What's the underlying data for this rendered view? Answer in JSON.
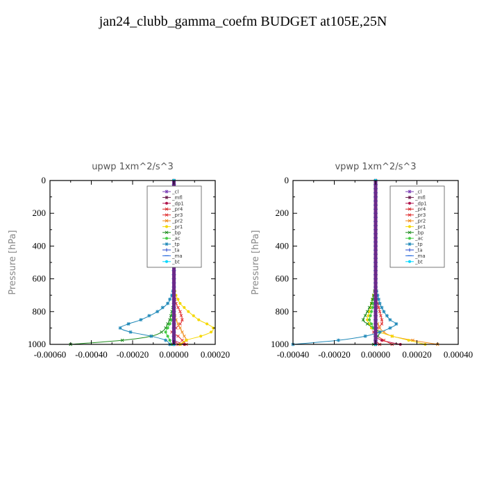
{
  "title": "jan24_clubb_gamma_coefm  BUDGET at105E,25N",
  "chart_data": [
    {
      "type": "line",
      "title": "upwp   1xm^2/s^3",
      "ylabel": "Pressure [hPa]",
      "xlabel": "",
      "xlim": [
        -0.0006,
        0.0002
      ],
      "ylim": [
        1000,
        0
      ],
      "xticks": [
        "-0.00060",
        "-0.00040",
        "-0.00020",
        "0.00000",
        "0.00020"
      ],
      "yticks": [
        "0",
        "200",
        "400",
        "600",
        "800",
        "1000"
      ],
      "legend_position": "top-right",
      "pressure_levels": [
        650,
        700,
        750,
        800,
        850,
        875,
        900,
        925,
        950,
        975,
        1000
      ],
      "series": [
        {
          "name": "_cl",
          "color": "#7b3fb5",
          "values": [
            0,
            0,
            0,
            0,
            0,
            0,
            0,
            0,
            0,
            0,
            0
          ]
        },
        {
          "name": "_mfl",
          "color": "#6a1a4a",
          "values": [
            0,
            0,
            0,
            0,
            0,
            0,
            0,
            0,
            0,
            0,
            0
          ]
        },
        {
          "name": "_dp1",
          "color": "#b0154e",
          "values": [
            0,
            0,
            0,
            0,
            0,
            0,
            0,
            0,
            0,
            0,
            5e-05
          ]
        },
        {
          "name": "_pr4",
          "color": "#d42020",
          "values": [
            0,
            0,
            0,
            0,
            0,
            0,
            0,
            0,
            0,
            0,
            2e-05
          ]
        },
        {
          "name": "_pr3",
          "color": "#e03030",
          "values": [
            0,
            0,
            1e-05,
            3e-05,
            4e-05,
            3e-05,
            1e-05,
            -1e-05,
            2e-05,
            4e-05,
            6e-05
          ]
        },
        {
          "name": "_pr2",
          "color": "#f08a1a",
          "values": [
            0,
            0,
            0,
            0,
            1e-05,
            2e-05,
            3e-05,
            4e-05,
            5e-05,
            6e-05,
            3e-05
          ]
        },
        {
          "name": "_pr1",
          "color": "#f5d800",
          "values": [
            0,
            1e-05,
            3e-05,
            7e-05,
            0.00012,
            0.00016,
            0.00019,
            0.00018,
            0.00013,
            6e-05,
            3e-05
          ]
        },
        {
          "name": "_bp",
          "color": "#1a8a1a",
          "values": [
            0,
            0,
            0,
            -1e-05,
            -2e-05,
            -3e-05,
            -4e-05,
            -6e-05,
            -0.00011,
            -0.00025,
            -0.0005
          ]
        },
        {
          "name": "_ac",
          "color": "#44cc44",
          "values": [
            0,
            0,
            0,
            0,
            -1e-05,
            -2e-05,
            -3e-05,
            -4e-05,
            -3e-05,
            -2e-05,
            -1e-05
          ]
        },
        {
          "name": "_tp",
          "color": "#1e88b8",
          "values": [
            0,
            -1e-05,
            -3e-05,
            -8e-05,
            -0.00016,
            -0.00022,
            -0.00026,
            -0.00021,
            -0.00011,
            -4e-05,
            -2e-05
          ]
        },
        {
          "name": "_ta",
          "color": "#2244cc",
          "values": [
            0,
            0,
            0,
            0,
            0,
            0,
            0,
            0,
            0,
            0,
            0
          ]
        },
        {
          "name": "_ma",
          "color": "#2266dd",
          "values": [
            0,
            0,
            0,
            0,
            0,
            0,
            0,
            0,
            0,
            0,
            0
          ]
        },
        {
          "name": "_bt",
          "color": "#00d8ff",
          "values": [
            0,
            0,
            0,
            0,
            0,
            0,
            0,
            0,
            0,
            0,
            0
          ]
        }
      ]
    },
    {
      "type": "line",
      "title": "vpwp   1xm^2/s^3",
      "ylabel": "Pressure [hPa]",
      "xlabel": "",
      "xlim": [
        -0.0004,
        0.0004
      ],
      "ylim": [
        1000,
        0
      ],
      "xticks": [
        "-0.00040",
        "-0.00020",
        "0.00000",
        "0.00020",
        "0.00040"
      ],
      "yticks": [
        "0",
        "200",
        "400",
        "600",
        "800",
        "1000"
      ],
      "legend_position": "top-right",
      "pressure_levels": [
        650,
        700,
        750,
        800,
        850,
        875,
        900,
        925,
        950,
        975,
        1000
      ],
      "series": [
        {
          "name": "_cl",
          "color": "#7b3fb5",
          "values": [
            0,
            0,
            0,
            0,
            0,
            0,
            0,
            0,
            0,
            0,
            0
          ]
        },
        {
          "name": "_mfl",
          "color": "#6a1a4a",
          "values": [
            0,
            0,
            0,
            0,
            0,
            0,
            0,
            0,
            0,
            0,
            0
          ]
        },
        {
          "name": "_dp1",
          "color": "#b0154e",
          "values": [
            0,
            0,
            0,
            0,
            0,
            0,
            0,
            0,
            0,
            3e-05,
            0.00012
          ]
        },
        {
          "name": "_pr4",
          "color": "#d42020",
          "values": [
            0,
            0,
            0,
            0,
            0,
            0,
            0,
            0,
            0,
            0,
            2e-05
          ]
        },
        {
          "name": "_pr3",
          "color": "#e03030",
          "values": [
            0,
            0,
            1e-05,
            2e-05,
            3e-05,
            3e-05,
            1e-05,
            -1e-05,
            1e-05,
            4e-05,
            8e-05
          ]
        },
        {
          "name": "_pr2",
          "color": "#f08a1a",
          "values": [
            0,
            0,
            0,
            0,
            0,
            1e-05,
            2e-05,
            4e-05,
            8e-05,
            0.00018,
            0.0003
          ]
        },
        {
          "name": "_pr1",
          "color": "#f5d800",
          "values": [
            0,
            -1e-05,
            -2e-05,
            -3e-05,
            -4e-05,
            -3e-05,
            -2e-05,
            2e-05,
            8e-05,
            0.00016,
            0.00024
          ]
        },
        {
          "name": "_bp",
          "color": "#1a8a1a",
          "values": [
            0,
            -1e-05,
            -2e-05,
            -4e-05,
            -6e-05,
            -4e-05,
            -1e-05,
            2e-05,
            1e-05,
            0,
            -1e-05
          ]
        },
        {
          "name": "_ac",
          "color": "#44cc44",
          "values": [
            0,
            0,
            -1e-05,
            -2e-05,
            -3e-05,
            -2e-05,
            -1e-05,
            0,
            0,
            0,
            0
          ]
        },
        {
          "name": "_tp",
          "color": "#1e88b8",
          "values": [
            0,
            1e-05,
            2e-05,
            4e-05,
            7e-05,
            0.0001,
            7e-05,
            2e-05,
            -5e-05,
            -0.00018,
            -0.0004
          ]
        },
        {
          "name": "_ta",
          "color": "#2244cc",
          "values": [
            0,
            0,
            0,
            0,
            0,
            0,
            0,
            0,
            0,
            0,
            0
          ]
        },
        {
          "name": "_ma",
          "color": "#2266dd",
          "values": [
            0,
            0,
            0,
            0,
            0,
            0,
            0,
            0,
            0,
            0,
            0
          ]
        },
        {
          "name": "_bt",
          "color": "#00d8ff",
          "values": [
            0,
            0,
            0,
            0,
            0,
            0,
            0,
            0,
            0,
            0,
            0
          ]
        }
      ]
    }
  ]
}
